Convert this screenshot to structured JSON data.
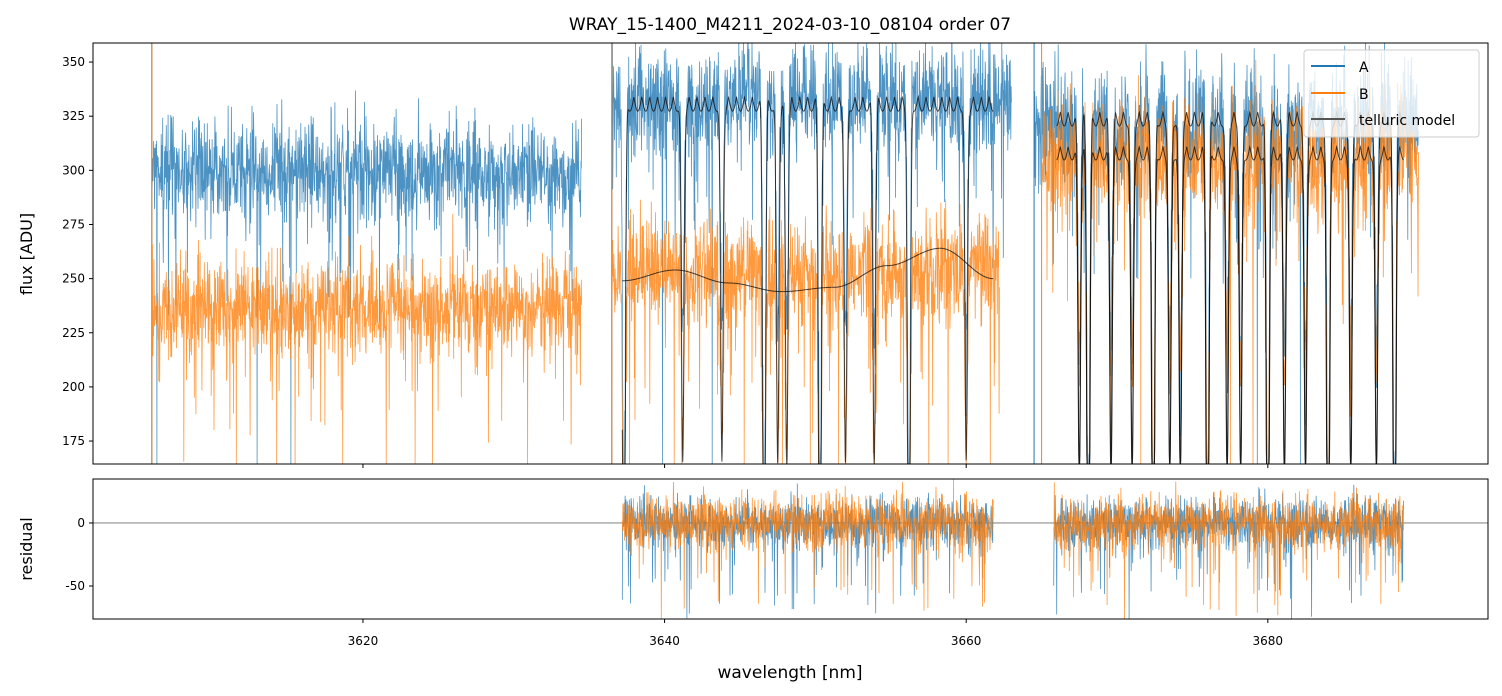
{
  "chart_data": [
    {
      "type": "line",
      "title": "WRAY_15-1400_M4211_2024-03-10_08104  order 07",
      "xlabel": "",
      "ylabel": "flux [ADU]",
      "xlim": [
        3602.1,
        3694.6
      ],
      "ylim": [
        164.4,
        358.8
      ],
      "yticks": [
        175,
        200,
        225,
        250,
        275,
        300,
        325,
        350
      ],
      "xticks": [
        3620,
        3640,
        3660,
        3680
      ],
      "legend": {
        "placement": "top-right",
        "entries": [
          "A",
          "B",
          "telluric model"
        ]
      },
      "colors": {
        "A": "#1f77b4",
        "B": "#ff7f0e",
        "telluric model": "#000000"
      },
      "series": [
        {
          "name": "A",
          "segments": [
            {
              "x": [
                3606,
                3634.5
              ],
              "level": 300,
              "noise": 12
            },
            {
              "x": [
                3636.5,
                3663
              ],
              "level": 333,
              "noise": 13
            },
            {
              "x": [
                3664.5,
                3690
              ],
              "level": 322,
              "noise": 14
            }
          ]
        },
        {
          "name": "B",
          "segments": [
            {
              "x": [
                3606,
                3634.5
              ],
              "level": 237,
              "noise": 11
            },
            {
              "x": [
                3636.5,
                3662.2
              ],
              "level": 255,
              "noise": 12
            },
            {
              "x": [
                3665,
                3690
              ],
              "level": 306,
              "noise": 14
            }
          ]
        },
        {
          "name": "telluric model",
          "segments": [
            {
              "x": [
                3637.2,
                3661.8
              ],
              "level": 334,
              "lines": true
            },
            {
              "x": [
                3637.2,
                3661.8
              ],
              "smooth": [
                249,
                254,
                248,
                244,
                246,
                256,
                264,
                250
              ]
            },
            {
              "x": [
                3666,
                3689
              ],
              "level": 327,
              "lines": true
            },
            {
              "x": [
                3666,
                3689
              ],
              "level": 311,
              "lines": true
            }
          ]
        }
      ],
      "absorption_lines_nm": [
        3637.3,
        3641.2,
        3643.8,
        3646.6,
        3647.5,
        3648.1,
        3650.3,
        3652.0,
        3653.9,
        3656.2,
        3660.0,
        3667.5,
        3668.1,
        3669.6,
        3671.0,
        3672.4,
        3673.5,
        3674.2,
        3676.0,
        3677.3,
        3678.2,
        3680.0,
        3681.1,
        3682.5,
        3684.0,
        3685.5,
        3687.2,
        3688.4
      ]
    },
    {
      "type": "line",
      "xlabel": "wavelength [nm]",
      "ylabel": "residual",
      "xlim": [
        3602.1,
        3694.6
      ],
      "ylim": [
        -76.2,
        34.9
      ],
      "yticks": [
        0,
        -50
      ],
      "xticks": [
        3620,
        3640,
        3660,
        3680
      ],
      "series": [
        {
          "name": "A",
          "segments": [
            {
              "x": [
                3637.2,
                3661.8
              ]
            },
            {
              "x": [
                3665.8,
                3689
              ]
            }
          ],
          "noise": 10
        },
        {
          "name": "B",
          "segments": [
            {
              "x": [
                3637.2,
                3661.8
              ]
            },
            {
              "x": [
                3665.8,
                3689
              ]
            }
          ],
          "noise": 11
        }
      ]
    }
  ]
}
